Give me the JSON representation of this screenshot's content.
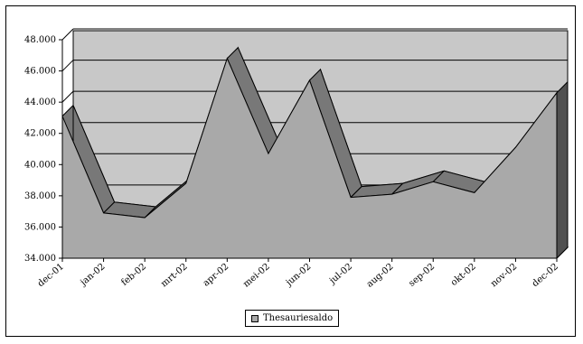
{
  "chart_data": {
    "type": "area",
    "title": "",
    "xlabel": "",
    "ylabel": "",
    "categories": [
      "dec-01",
      "jan-02",
      "feb-02",
      "mrt-02",
      "apr-02",
      "mei-02",
      "jun-02",
      "jul-02",
      "aug-02",
      "sep-02",
      "okt-02",
      "nov-02",
      "dec-02"
    ],
    "series": [
      {
        "name": "Thesauriesaldo",
        "values": [
          43100,
          36900,
          36600,
          38800,
          46800,
          40700,
          45400,
          37900,
          38100,
          38900,
          38200,
          41100,
          44600
        ]
      }
    ],
    "y_tick_labels": [
      "34.000",
      "36.000",
      "38.000",
      "40.000",
      "42.000",
      "44.000",
      "46.000",
      "48.000"
    ],
    "y_tick_values": [
      34000,
      36000,
      38000,
      40000,
      42000,
      44000,
      46000,
      48000
    ],
    "ylim": [
      34000,
      48000
    ],
    "grid": true,
    "style": "3d",
    "legend_position": "bottom",
    "colors": {
      "area_front": "#a9a9a9",
      "area_side": "#787878",
      "back_wall": "#c8c8c8",
      "floor": "#dcdcdc",
      "gridline": "#000000",
      "axis": "#000000"
    }
  }
}
